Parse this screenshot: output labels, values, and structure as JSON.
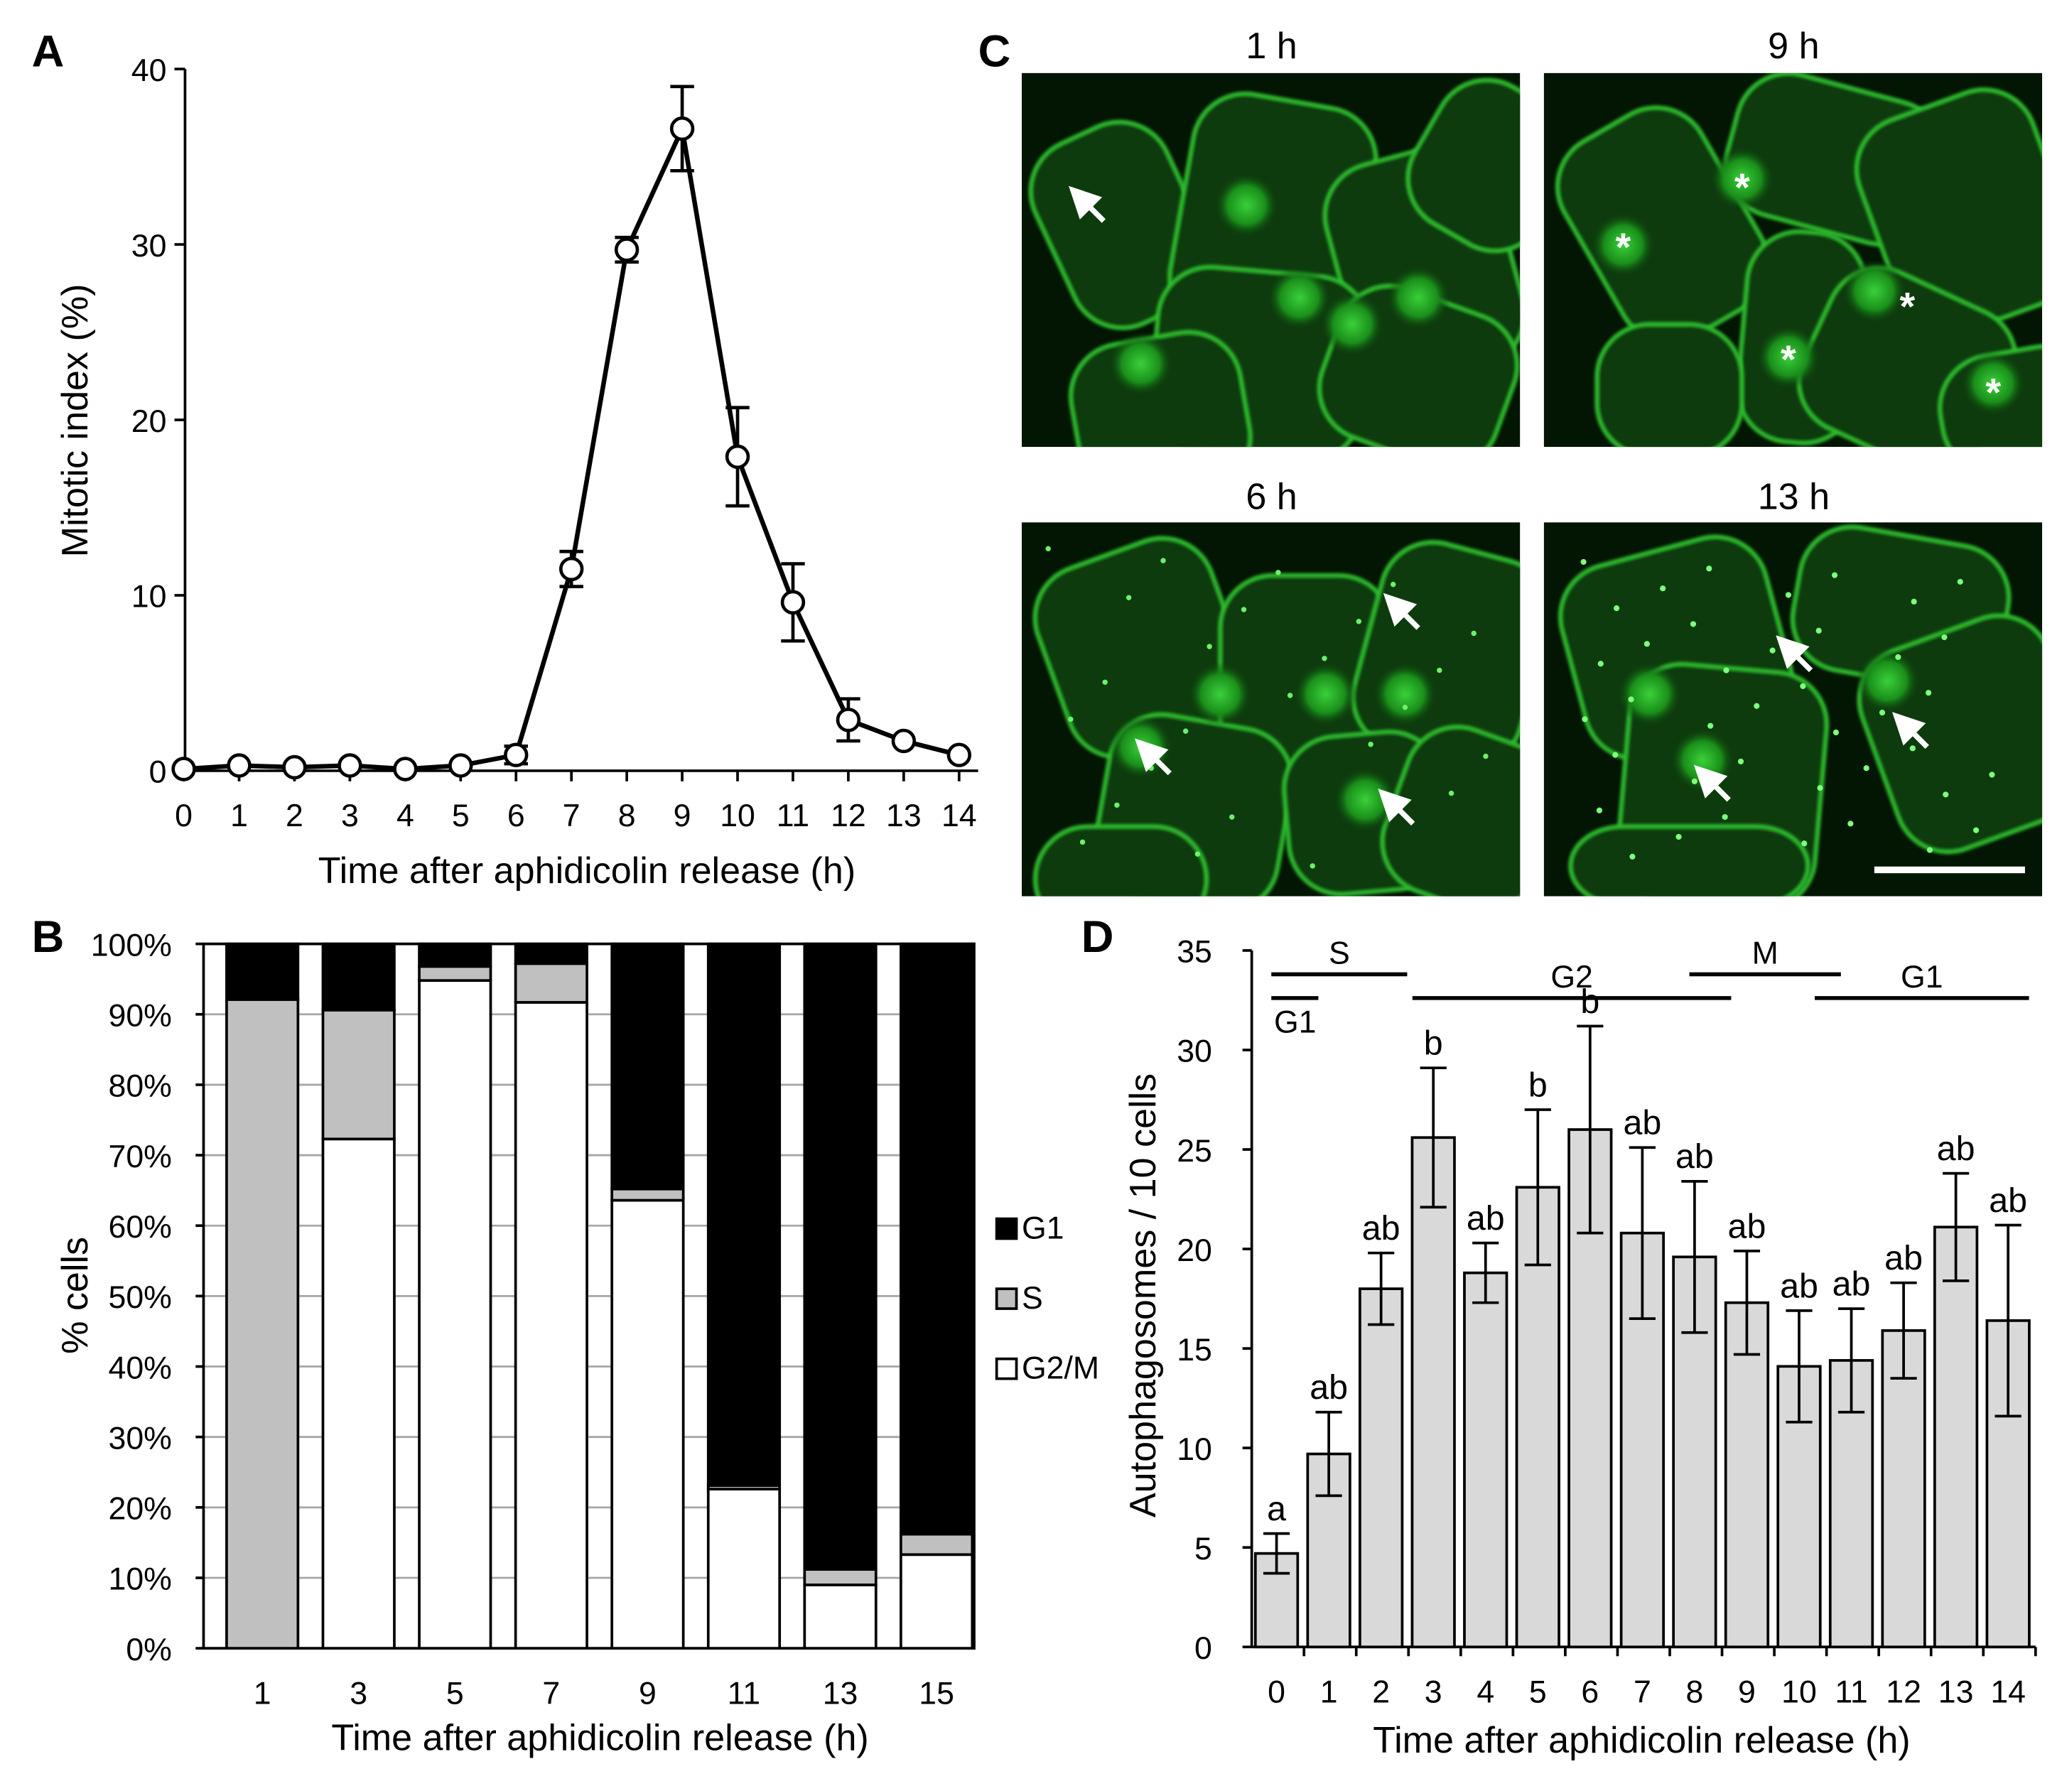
{
  "panels": {
    "A": {
      "label": "A"
    },
    "B": {
      "label": "B"
    },
    "C": {
      "label": "C"
    },
    "D": {
      "label": "D"
    }
  },
  "chart_data": [
    {
      "id": "A",
      "type": "line",
      "ylabel": "Mitotic index (%)",
      "xlabel": "Time after aphidicolin release (h)",
      "ylim": [
        0,
        40
      ],
      "yticks": [
        0,
        10,
        20,
        30,
        40
      ],
      "x": [
        0,
        1,
        2,
        3,
        4,
        5,
        6,
        7,
        8,
        9,
        10,
        11,
        12,
        13,
        14
      ],
      "series": [
        {
          "values": [
            0.1,
            0.3,
            0.2,
            0.3,
            0.1,
            0.3,
            0.9,
            11.5,
            29.7,
            36.6,
            17.9,
            9.6,
            2.9,
            1.7,
            0.9
          ],
          "errors": [
            0,
            0,
            0,
            0,
            0,
            0,
            0.5,
            1.0,
            0.7,
            2.4,
            2.8,
            2.2,
            1.2,
            0,
            0
          ]
        }
      ],
      "grid": false
    },
    {
      "id": "B",
      "type": "bar",
      "stacked": true,
      "ylabel": "% cells",
      "xlabel": "Time after aphidicolin release (h)",
      "ylim": [
        0,
        100
      ],
      "yticks": [
        "0%",
        "10%",
        "20%",
        "30%",
        "40%",
        "50%",
        "60%",
        "70%",
        "80%",
        "90%",
        "100%"
      ],
      "categories": [
        "1",
        "3",
        "5",
        "7",
        "9",
        "11",
        "13",
        "15"
      ],
      "series": [
        {
          "name": "G2/M",
          "color": "#ffffff",
          "values": [
            0,
            72.3,
            94.8,
            91.7,
            63.6,
            22.6,
            9.0,
            13.3
          ]
        },
        {
          "name": "S",
          "color": "#c0c0c0",
          "values": [
            92.1,
            18.3,
            2.0,
            5.5,
            1.6,
            0.5,
            2.2,
            2.9
          ]
        },
        {
          "name": "G1",
          "color": "#000000",
          "values": [
            7.9,
            9.4,
            3.2,
            2.8,
            34.8,
            76.9,
            88.8,
            83.8
          ]
        }
      ],
      "legend_order": [
        "G1",
        "S",
        "G2/M"
      ],
      "legend_position": "right",
      "grid": true
    },
    {
      "id": "D",
      "type": "bar",
      "ylabel": "Autophagosomes / 10 cells",
      "xlabel": "Time after aphidicolin release (h)",
      "ylim": [
        0,
        35
      ],
      "yticks": [
        0,
        5,
        10,
        15,
        20,
        25,
        30,
        35
      ],
      "categories": [
        "0",
        "1",
        "2",
        "3",
        "4",
        "5",
        "6",
        "7",
        "8",
        "9",
        "10",
        "11",
        "12",
        "13",
        "14"
      ],
      "values": [
        4.7,
        9.7,
        18.0,
        25.6,
        18.8,
        23.1,
        26.0,
        20.8,
        19.6,
        17.3,
        14.1,
        14.4,
        15.9,
        21.1,
        16.4
      ],
      "errors": [
        1.0,
        2.1,
        1.8,
        3.5,
        1.5,
        3.9,
        5.2,
        4.3,
        3.8,
        2.6,
        2.8,
        2.6,
        2.4,
        2.7,
        4.8
      ],
      "annotations": [
        "a",
        "ab",
        "ab",
        "b",
        "ab",
        "b",
        "b",
        "ab",
        "ab",
        "ab",
        "ab",
        "ab",
        "ab",
        "ab",
        "ab"
      ],
      "bar_color": "#d9d9d9",
      "phase_bars": [
        {
          "label": "S",
          "x_from": -0.1,
          "x_to": 2.5,
          "row": 0
        },
        {
          "label": "G1",
          "x_from": -0.1,
          "x_to": 0.8,
          "row": 1
        },
        {
          "label": "G2",
          "x_from": 2.6,
          "x_to": 8.7,
          "row": 2
        },
        {
          "label": "M",
          "x_from": 7.9,
          "x_to": 10.8,
          "row": 0
        },
        {
          "label": "G1",
          "x_from": 10.3,
          "x_to": 14.4,
          "row": 2
        }
      ],
      "grid": false
    }
  ],
  "micrographs": [
    {
      "id": "C1",
      "title": "1 h"
    },
    {
      "id": "C2",
      "title": "9 h"
    },
    {
      "id": "C3",
      "title": "6 h"
    },
    {
      "id": "C4",
      "title": "13 h"
    }
  ]
}
